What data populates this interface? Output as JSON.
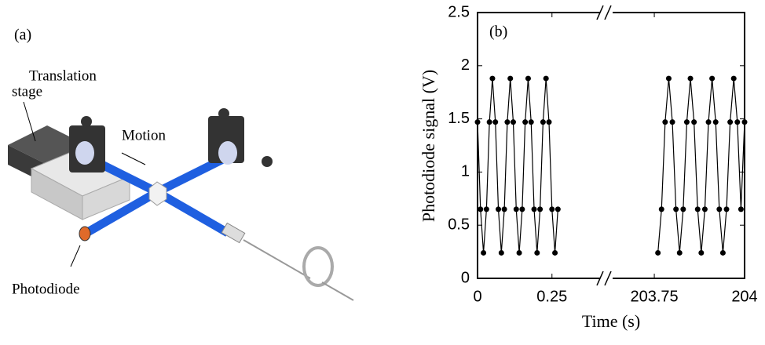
{
  "panel_a": {
    "label": "(a)",
    "translation_stage": [
      "Translation",
      "stage"
    ],
    "motion": "Motion",
    "photodiode": "Photodiode"
  },
  "chart_data": {
    "type": "line",
    "annotation": "(b)",
    "xlabel": "Time (s)",
    "ylabel": "Photodiode signal (V)",
    "ylim": [
      0,
      2.5
    ],
    "yticks": [
      0,
      0.5,
      1,
      1.5,
      2,
      2.5
    ],
    "x_segments": [
      {
        "xlim": [
          0,
          0.43
        ],
        "xticks": [
          0,
          0.25
        ]
      },
      {
        "xlim": [
          203.615,
          204
        ],
        "xticks": [
          203.75,
          204
        ]
      }
    ],
    "series": [
      {
        "color": "#000000",
        "segment": 0,
        "x": [
          0,
          0.01,
          0.02,
          0.03,
          0.04,
          0.05,
          0.06,
          0.07,
          0.08,
          0.09,
          0.1,
          0.11,
          0.12,
          0.13,
          0.14,
          0.15,
          0.16,
          0.17,
          0.18,
          0.19,
          0.2,
          0.21,
          0.22,
          0.23,
          0.24,
          0.25,
          0.26,
          0.27
        ],
        "values": [
          1.47,
          0.65,
          0.24,
          0.65,
          1.47,
          1.88,
          1.47,
          0.65,
          0.24,
          0.65,
          1.47,
          1.88,
          1.47,
          0.65,
          0.24,
          0.65,
          1.47,
          1.88,
          1.47,
          0.65,
          0.24,
          0.65,
          1.47,
          1.88,
          1.47,
          0.65,
          0.24,
          0.65
        ]
      },
      {
        "color": "#000000",
        "segment": 1,
        "x": [
          203.76,
          203.77,
          203.78,
          203.79,
          203.8,
          203.81,
          203.82,
          203.83,
          203.84,
          203.85,
          203.86,
          203.87,
          203.88,
          203.89,
          203.9,
          203.91,
          203.92,
          203.93,
          203.94,
          203.95,
          203.96,
          203.97,
          203.98,
          203.99,
          204
        ],
        "values": [
          0.24,
          0.65,
          1.47,
          1.88,
          1.47,
          0.65,
          0.24,
          0.65,
          1.47,
          1.88,
          1.47,
          0.65,
          0.24,
          0.65,
          1.47,
          1.88,
          1.47,
          0.65,
          0.24,
          0.65,
          1.47,
          1.88,
          1.47,
          0.65,
          1.47
        ]
      }
    ]
  }
}
